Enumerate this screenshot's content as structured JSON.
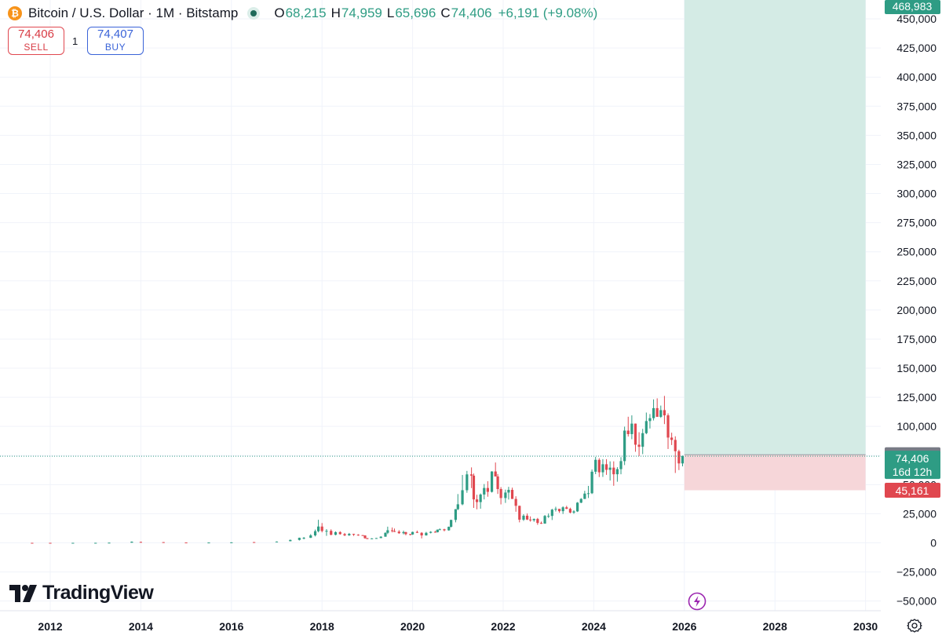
{
  "header": {
    "symbol_title": "Bitcoin / U.S. Dollar · 1M · Bitstamp",
    "open_label": "O",
    "open": "68,215",
    "high_label": "H",
    "high": "74,959",
    "low_label": "L",
    "low": "65,696",
    "close_label": "C",
    "close": "74,406",
    "change": "+6,191 (+9.08%)"
  },
  "trade": {
    "sell_price": "74,406",
    "sell_label": "SELL",
    "spread": "1",
    "buy_price": "74,407",
    "buy_label": "BUY"
  },
  "branding": {
    "logo_text": "TradingView"
  },
  "price_tags": {
    "target": "468,983",
    "entry": "75,707",
    "last": "74,406",
    "countdown": "16d 12h",
    "stop": "45,161"
  },
  "colors": {
    "up": "#2e9c84",
    "down": "#e0474f",
    "profit_zone": "#d4ebe5",
    "loss_zone": "#f6d6d9",
    "target_tag": "#2e9c84",
    "entry_tag": "#787b86",
    "stop_tag": "#e0474f"
  },
  "icons": {
    "btc": "bitcoin-logo-icon",
    "live": "market-open-dot-icon",
    "bolt": "lightning-icon",
    "gear": "gear-icon",
    "tv": "tradingview-logo-icon"
  },
  "chart_data": {
    "type": "candlestick",
    "interval": "1M",
    "y_ticks": [
      -50000,
      -25000,
      0,
      25000,
      50000,
      75000,
      100000,
      125000,
      150000,
      175000,
      200000,
      225000,
      250000,
      275000,
      300000,
      325000,
      350000,
      375000,
      400000,
      425000,
      450000
    ],
    "y_tick_labels": [
      "−50,000",
      "−25,000",
      "0",
      "25,000",
      "50,000",
      "75,000",
      "100,000",
      "125,000",
      "150,000",
      "175,000",
      "200,000",
      "225,000",
      "250,000",
      "275,000",
      "300,000",
      "325,000",
      "350,000",
      "375,000",
      "400,000",
      "425,000",
      "450,000"
    ],
    "x_ticks": [
      "2012",
      "2014",
      "2016",
      "2018",
      "2020",
      "2022",
      "2024",
      "2026",
      "2028",
      "2030"
    ],
    "ylim": [
      -55000,
      470000
    ],
    "xlim": [
      2011.5,
      2030.4
    ],
    "grid": true,
    "position": {
      "type": "long",
      "start": 2026.0,
      "end": 2030.0,
      "entry": 75707,
      "target": 468983,
      "stop": 45161
    },
    "last_price": 74406,
    "series": [
      {
        "ohlc": [
          [
            2011.6,
            10,
            14,
            5,
            6
          ],
          [
            2012.0,
            6,
            7,
            4,
            5
          ],
          [
            2012.5,
            5,
            12,
            5,
            10
          ],
          [
            2013.0,
            13,
            30,
            13,
            25
          ],
          [
            2013.3,
            90,
            230,
            50,
            140
          ],
          [
            2013.8,
            140,
            1150,
            200,
            1000
          ],
          [
            2014.0,
            800,
            1000,
            400,
            600
          ],
          [
            2014.5,
            600,
            650,
            300,
            350
          ],
          [
            2015.0,
            300,
            320,
            170,
            230
          ],
          [
            2015.5,
            250,
            300,
            200,
            280
          ],
          [
            2016.0,
            420,
            450,
            350,
            420
          ],
          [
            2016.5,
            650,
            700,
            500,
            600
          ],
          [
            2017.0,
            960,
            1200,
            800,
            1100
          ],
          [
            2017.3,
            1400,
            2800,
            1300,
            2500
          ],
          [
            2017.5,
            2500,
            4500,
            2000,
            4300
          ],
          [
            2017.6,
            4300,
            5000,
            3000,
            4300
          ],
          [
            2017.75,
            4300,
            7500,
            4200,
            6400
          ],
          [
            2017.85,
            6400,
            11400,
            5500,
            10000
          ],
          [
            2017.92,
            10000,
            19800,
            9000,
            14000
          ],
          [
            2018.0,
            14000,
            17000,
            9000,
            10200
          ],
          [
            2018.1,
            10200,
            11800,
            6000,
            10300
          ],
          [
            2018.2,
            10300,
            11600,
            6500,
            6900
          ],
          [
            2018.3,
            6900,
            9800,
            6500,
            9200
          ],
          [
            2018.4,
            9200,
            10000,
            7000,
            7500
          ],
          [
            2018.5,
            7500,
            8500,
            5800,
            6400
          ],
          [
            2018.6,
            6400,
            8500,
            6000,
            7700
          ],
          [
            2018.7,
            7700,
            7800,
            5900,
            7000
          ],
          [
            2018.8,
            7000,
            7400,
            6100,
            6600
          ],
          [
            2018.9,
            6600,
            6700,
            6200,
            6300
          ],
          [
            2018.95,
            6300,
            6500,
            3500,
            4000
          ],
          [
            2019.0,
            4000,
            4200,
            3200,
            3700
          ],
          [
            2019.1,
            3700,
            4000,
            3400,
            3800
          ],
          [
            2019.2,
            3800,
            4200,
            3700,
            4100
          ],
          [
            2019.3,
            4100,
            5600,
            4000,
            5300
          ],
          [
            2019.4,
            5300,
            9000,
            5200,
            8600
          ],
          [
            2019.45,
            8600,
            13900,
            7500,
            10800
          ],
          [
            2019.55,
            10800,
            13200,
            9000,
            10100
          ],
          [
            2019.6,
            10100,
            12300,
            9300,
            9600
          ],
          [
            2019.7,
            9600,
            10900,
            7700,
            8300
          ],
          [
            2019.8,
            8300,
            10500,
            7300,
            9200
          ],
          [
            2019.85,
            9200,
            9500,
            6500,
            7500
          ],
          [
            2019.95,
            7500,
            7700,
            6400,
            7200
          ],
          [
            2020.0,
            7200,
            9600,
            6900,
            9350
          ],
          [
            2020.1,
            9350,
            10500,
            8500,
            8600
          ],
          [
            2020.2,
            8600,
            9200,
            3800,
            6400
          ],
          [
            2020.3,
            6400,
            9400,
            6200,
            8600
          ],
          [
            2020.4,
            8600,
            10000,
            8100,
            9450
          ],
          [
            2020.5,
            9450,
            10300,
            8900,
            9150
          ],
          [
            2020.55,
            9150,
            11500,
            8900,
            11300
          ],
          [
            2020.6,
            11300,
            12400,
            10900,
            11650
          ],
          [
            2020.7,
            11650,
            12100,
            9900,
            10780
          ],
          [
            2020.8,
            10780,
            14000,
            10400,
            13800
          ],
          [
            2020.85,
            13800,
            19800,
            13200,
            19700
          ],
          [
            2020.95,
            19700,
            29000,
            17600,
            28900
          ],
          [
            2021.0,
            28900,
            41900,
            28100,
            33100
          ],
          [
            2021.1,
            33100,
            58300,
            32300,
            45200
          ],
          [
            2021.2,
            45200,
            61800,
            43000,
            58800
          ],
          [
            2021.3,
            58800,
            64800,
            47000,
            57700
          ],
          [
            2021.35,
            57700,
            59500,
            30000,
            37300
          ],
          [
            2021.42,
            37300,
            41300,
            28800,
            35000
          ],
          [
            2021.5,
            35000,
            42400,
            29300,
            41500
          ],
          [
            2021.58,
            41500,
            50500,
            37300,
            47100
          ],
          [
            2021.66,
            47100,
            52900,
            39600,
            43800
          ],
          [
            2021.75,
            43800,
            61500,
            43200,
            61300
          ],
          [
            2021.83,
            61300,
            69000,
            57800,
            57000
          ],
          [
            2021.88,
            57000,
            59100,
            42000,
            46200
          ],
          [
            2021.95,
            46200,
            47900,
            33000,
            38500
          ],
          [
            2022.05,
            38500,
            45700,
            34300,
            43200
          ],
          [
            2022.12,
            43200,
            48100,
            37200,
            45500
          ],
          [
            2022.2,
            45500,
            47400,
            37700,
            37700
          ],
          [
            2022.28,
            37700,
            40000,
            26700,
            31800
          ],
          [
            2022.36,
            31800,
            31900,
            17600,
            19900
          ],
          [
            2022.45,
            19900,
            24600,
            18800,
            23300
          ],
          [
            2022.53,
            23300,
            25200,
            19600,
            20000
          ],
          [
            2022.6,
            20000,
            22700,
            18200,
            19400
          ],
          [
            2022.68,
            19400,
            20900,
            18100,
            20500
          ],
          [
            2022.76,
            20500,
            21400,
            15500,
            17100
          ],
          [
            2022.84,
            17100,
            18300,
            16300,
            16500
          ],
          [
            2022.92,
            16500,
            23900,
            16500,
            23100
          ],
          [
            2023.0,
            23100,
            25200,
            21400,
            23100
          ],
          [
            2023.08,
            23100,
            29200,
            19600,
            28500
          ],
          [
            2023.16,
            28500,
            31000,
            26900,
            29200
          ],
          [
            2023.24,
            29200,
            28400,
            25800,
            27200
          ],
          [
            2023.32,
            27200,
            31400,
            24800,
            30500
          ],
          [
            2023.4,
            30500,
            31800,
            29000,
            29200
          ],
          [
            2023.48,
            29200,
            30200,
            25300,
            26000
          ],
          [
            2023.56,
            26000,
            28000,
            24900,
            27000
          ],
          [
            2023.64,
            27000,
            35000,
            26500,
            34500
          ],
          [
            2023.72,
            34500,
            38400,
            34100,
            37700
          ],
          [
            2023.8,
            37700,
            44700,
            37600,
            42300
          ],
          [
            2023.88,
            42300,
            48900,
            38500,
            42600
          ],
          [
            2023.96,
            42600,
            63000,
            41900,
            61100
          ],
          [
            2024.04,
            61100,
            73800,
            59000,
            71300
          ],
          [
            2024.12,
            71300,
            72700,
            56500,
            60600
          ],
          [
            2024.2,
            60600,
            71900,
            56600,
            67500
          ],
          [
            2024.28,
            67500,
            71900,
            58400,
            62700
          ],
          [
            2024.36,
            62700,
            70000,
            53500,
            64600
          ],
          [
            2024.44,
            64600,
            70000,
            49000,
            58900
          ],
          [
            2024.52,
            58900,
            65000,
            52500,
            63300
          ],
          [
            2024.6,
            63300,
            73600,
            58900,
            70200
          ],
          [
            2024.68,
            70200,
            99800,
            66800,
            96400
          ],
          [
            2024.76,
            96400,
            108300,
            91300,
            93400
          ],
          [
            2024.84,
            93400,
            109500,
            89000,
            102400
          ],
          [
            2024.92,
            102400,
            102500,
            78200,
            84300
          ],
          [
            2025.0,
            84300,
            95000,
            74400,
            82500
          ],
          [
            2025.08,
            82500,
            97900,
            76200,
            94200
          ],
          [
            2025.16,
            94200,
            111900,
            93300,
            104600
          ],
          [
            2025.24,
            104600,
            110600,
            98200,
            107100
          ],
          [
            2025.32,
            107100,
            123200,
            105100,
            115700
          ],
          [
            2025.4,
            115700,
            124100,
            112000,
            108200
          ],
          [
            2025.48,
            108200,
            117900,
            107300,
            114000
          ],
          [
            2025.56,
            114000,
            126200,
            102000,
            109500
          ],
          [
            2025.64,
            109500,
            111200,
            80600,
            90400
          ],
          [
            2025.72,
            90400,
            94600,
            84000,
            88400
          ],
          [
            2025.8,
            88400,
            91500,
            60000,
            78700
          ],
          [
            2025.88,
            78700,
            80000,
            62500,
            68215
          ],
          [
            2025.96,
            68215,
            74959,
            65696,
            74406
          ]
        ]
      }
    ]
  }
}
